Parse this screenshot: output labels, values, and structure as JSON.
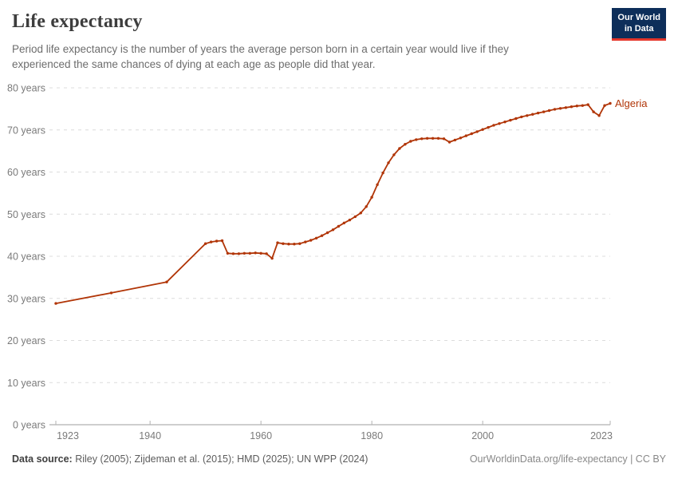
{
  "header": {
    "title": "Life expectancy",
    "subtitle_line1": "Period life expectancy is the number of years the average person born in a certain year would live if they",
    "subtitle_line2": "experienced the same chances of dying at each age as people did that year.",
    "logo": {
      "line1": "Our World",
      "line2": "in Data",
      "bg_color": "#0d2e5a",
      "bar_color": "#e5362b"
    }
  },
  "chart_data": {
    "type": "line",
    "title": "Life expectancy",
    "entity": "Algeria",
    "series": [
      {
        "name": "Algeria",
        "color": "#B13507",
        "points": [
          [
            1923,
            28.8
          ],
          [
            1933,
            31.3
          ],
          [
            1943,
            33.9
          ],
          [
            1950,
            43.0
          ],
          [
            1951,
            43.4
          ],
          [
            1952,
            43.6
          ],
          [
            1953,
            43.7
          ],
          [
            1954,
            40.7
          ],
          [
            1955,
            40.6
          ],
          [
            1956,
            40.6
          ],
          [
            1957,
            40.7
          ],
          [
            1958,
            40.7
          ],
          [
            1959,
            40.8
          ],
          [
            1960,
            40.7
          ],
          [
            1961,
            40.6
          ],
          [
            1962,
            39.5
          ],
          [
            1963,
            43.2
          ],
          [
            1964,
            43.0
          ],
          [
            1965,
            42.9
          ],
          [
            1966,
            42.9
          ],
          [
            1967,
            43.0
          ],
          [
            1968,
            43.4
          ],
          [
            1969,
            43.8
          ],
          [
            1970,
            44.3
          ],
          [
            1971,
            44.9
          ],
          [
            1972,
            45.6
          ],
          [
            1973,
            46.3
          ],
          [
            1974,
            47.1
          ],
          [
            1975,
            47.9
          ],
          [
            1976,
            48.6
          ],
          [
            1977,
            49.4
          ],
          [
            1978,
            50.3
          ],
          [
            1979,
            51.8
          ],
          [
            1980,
            54.0
          ],
          [
            1981,
            57.0
          ],
          [
            1982,
            59.8
          ],
          [
            1983,
            62.2
          ],
          [
            1984,
            64.1
          ],
          [
            1985,
            65.6
          ],
          [
            1986,
            66.6
          ],
          [
            1987,
            67.3
          ],
          [
            1988,
            67.7
          ],
          [
            1989,
            67.9
          ],
          [
            1990,
            68.0
          ],
          [
            1991,
            68.0
          ],
          [
            1992,
            68.0
          ],
          [
            1993,
            67.9
          ],
          [
            1994,
            67.1
          ],
          [
            1995,
            67.6
          ],
          [
            1996,
            68.1
          ],
          [
            1997,
            68.6
          ],
          [
            1998,
            69.1
          ],
          [
            1999,
            69.6
          ],
          [
            2000,
            70.1
          ],
          [
            2001,
            70.6
          ],
          [
            2002,
            71.1
          ],
          [
            2003,
            71.5
          ],
          [
            2004,
            71.9
          ],
          [
            2005,
            72.3
          ],
          [
            2006,
            72.7
          ],
          [
            2007,
            73.1
          ],
          [
            2008,
            73.4
          ],
          [
            2009,
            73.7
          ],
          [
            2010,
            74.0
          ],
          [
            2011,
            74.3
          ],
          [
            2012,
            74.6
          ],
          [
            2013,
            74.9
          ],
          [
            2014,
            75.1
          ],
          [
            2015,
            75.3
          ],
          [
            2016,
            75.5
          ],
          [
            2017,
            75.7
          ],
          [
            2018,
            75.8
          ],
          [
            2019,
            76.0
          ],
          [
            2020,
            74.3
          ],
          [
            2021,
            73.4
          ],
          [
            2022,
            75.8
          ],
          [
            2023,
            76.3
          ]
        ]
      }
    ],
    "xlim": [
      1923,
      2023
    ],
    "ylim": [
      0,
      80
    ],
    "x_ticks": [
      1923,
      1940,
      1960,
      1980,
      2000,
      2023
    ],
    "y_ticks": [
      0,
      10,
      20,
      30,
      40,
      50,
      60,
      70,
      80
    ],
    "y_tick_suffix": " years",
    "grid": "horizontal-dashed",
    "legend_position": "end-of-line-label",
    "colors": {
      "gridline": "#dcdcdc",
      "axis": "#9e9e9e",
      "tick": "#b3b3b3",
      "tick_label": "#7a7a7a"
    }
  },
  "footer": {
    "source_label": "Data source:",
    "source_text": " Riley (2005); Zijdeman et al. (2015); HMD (2025); UN WPP (2024)",
    "rights": "OurWorldinData.org/life-expectancy | CC BY"
  }
}
